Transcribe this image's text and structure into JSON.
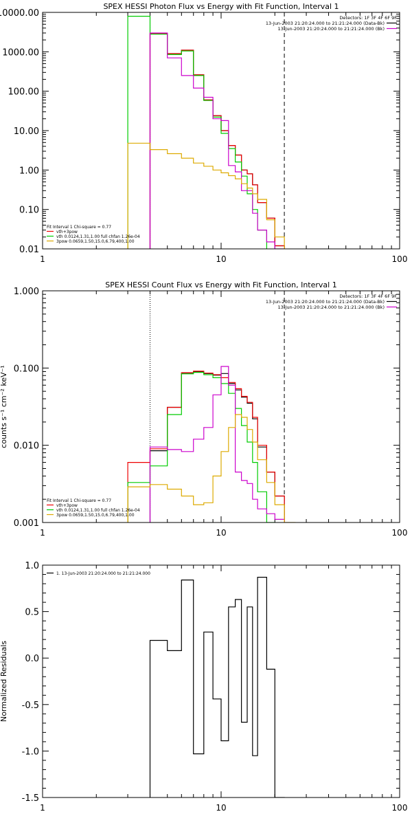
{
  "chart_data": [
    {
      "type": "line",
      "title": "SPEX HESSI Photon Flux vs Energy with Fit Function, Interval 1",
      "xscale": "log",
      "yscale": "log",
      "xlim": [
        1,
        100
      ],
      "ylim": [
        0.01,
        10000
      ],
      "x_ticks": [
        1,
        10,
        100
      ],
      "x_tick_labels": [
        "1",
        "10",
        "100"
      ],
      "y_ticks": [
        0.01,
        0.1,
        1,
        10,
        100,
        1000,
        10000
      ],
      "y_tick_labels": [
        "0.01",
        "0.10",
        "1.00",
        "10.00",
        "100.00",
        "1000.00",
        "10000.00"
      ],
      "ylabel": "",
      "dotted_x": 4.0,
      "dashed_x": 22.6,
      "header": [
        "Detectors: 1F 3F 4F 6F 9F",
        "13-Jun-2003 21:20:24.000 to 21:21:24.000 (Data-Bk)",
        "13-Jun-2003 21:20:24.000 to 21:21:24.000 (Bk)"
      ],
      "header_colors": [
        "#000000",
        "#000000",
        "#cc00cc"
      ],
      "legend": [
        "Fit Interval 1    Chi-square = 0.77",
        "vth+3pow",
        "vth 0.0124,1.31,1.00  full chfan 1.26e-04",
        "3pow 0.0659,1.50,15.0,6.79,400,1.00"
      ],
      "legend_colors": [
        "#000000",
        "#ee0000",
        "#00cc00",
        "#ddaa00"
      ],
      "edges": [
        3.0,
        4.0,
        5.0,
        6.0,
        7.0,
        8.0,
        9.0,
        10.0,
        11.0,
        12.0,
        13.0,
        14.0,
        15.0,
        16.0,
        18.0,
        20.0,
        22.6
      ],
      "series": [
        {
          "color": "#000000",
          "values": [
            null,
            2900,
            900,
            1100,
            260,
            60,
            24,
            10,
            4.2,
            2.4,
            1.0,
            0.8,
            0.42,
            0.15,
            0.06,
            0.012
          ]
        },
        {
          "color": "#ee0000",
          "values": [
            null,
            2900,
            900,
            1100,
            260,
            60,
            24,
            10,
            4.2,
            2.4,
            1.0,
            0.8,
            0.42,
            0.15,
            0.06,
            0.012
          ]
        },
        {
          "color": "#00cc00",
          "values": [
            8000,
            2800,
            850,
            1050,
            250,
            58,
            22,
            8.5,
            3.5,
            1.6,
            0.7,
            0.25,
            0.1,
            0.03,
            0.008,
            null
          ]
        },
        {
          "color": "#cc00cc",
          "values": [
            null,
            3000,
            700,
            250,
            120,
            70,
            20,
            18,
            1.3,
            0.9,
            0.3,
            0.3,
            0.08,
            0.03,
            0.015,
            0.01
          ]
        },
        {
          "color": "#ddaa00",
          "values": [
            4.8,
            3.3,
            2.6,
            2.0,
            1.5,
            1.25,
            1.0,
            0.85,
            0.72,
            0.6,
            0.45,
            0.35,
            0.25,
            0.18,
            0.055,
            0.02
          ]
        }
      ]
    },
    {
      "type": "line",
      "title": "SPEX HESSI Count Flux vs Energy with Fit Function, Interval 1",
      "xscale": "log",
      "yscale": "log",
      "xlim": [
        1,
        100
      ],
      "ylim": [
        0.001,
        1
      ],
      "x_ticks": [
        1,
        10,
        100
      ],
      "x_tick_labels": [
        "1",
        "10",
        "100"
      ],
      "y_ticks": [
        0.001,
        0.01,
        0.1,
        1
      ],
      "y_tick_labels": [
        "0.001",
        "0.010",
        "0.100",
        "1.000"
      ],
      "ylabel": "counts s⁻¹ cm⁻² keV⁻¹",
      "dotted_x": 4.0,
      "dashed_x": 22.6,
      "header": [
        "Detectors: 1F 3F 4F 6F 9F",
        "13-Jun-2003 21:20:24.000 to 21:21:24.000 (Data-Bk)",
        "13-Jun-2003 21:20:24.000 to 21:21:24.000 (Bk)"
      ],
      "header_colors": [
        "#000000",
        "#000000",
        "#cc00cc"
      ],
      "legend": [
        "Fit Interval 1    Chi-square = 0.77",
        "vth+3pow",
        "vth 0.0124,1.31,1.00  full chfan 1.26e-04",
        "3pow 0.0659,1.50,15.0,6.79,400,1.00"
      ],
      "legend_colors": [
        "#000000",
        "#ee0000",
        "#00cc00",
        "#ddaa00"
      ],
      "edges": [
        3.0,
        4.0,
        5.0,
        6.0,
        7.0,
        8.0,
        9.0,
        10.0,
        11.0,
        12.0,
        13.0,
        14.0,
        15.0,
        16.0,
        18.0,
        20.0,
        22.6,
        26.0
      ],
      "series": [
        {
          "color": "#000000",
          "values": [
            null,
            0.0085,
            0.031,
            0.086,
            0.09,
            0.085,
            0.081,
            0.085,
            0.063,
            0.052,
            0.042,
            0.035,
            0.022,
            0.0095,
            0.0045,
            0.0022,
            null
          ]
        },
        {
          "color": "#ee0000",
          "values": [
            0.006,
            0.009,
            0.031,
            0.087,
            0.091,
            0.086,
            0.082,
            0.075,
            0.065,
            0.054,
            0.043,
            0.036,
            0.023,
            0.01,
            0.0045,
            0.0022,
            null
          ]
        },
        {
          "color": "#00cc00",
          "values": [
            0.0033,
            0.0054,
            0.025,
            0.084,
            0.088,
            0.082,
            0.075,
            0.063,
            0.047,
            0.03,
            0.018,
            0.011,
            0.006,
            0.0025,
            0.001,
            null,
            null
          ]
        },
        {
          "color": "#cc00cc",
          "values": [
            null,
            0.0095,
            0.0088,
            0.0083,
            0.012,
            0.017,
            0.045,
            0.105,
            0.06,
            0.0045,
            0.0035,
            0.0032,
            0.002,
            0.0015,
            0.0013,
            0.0011,
            null
          ]
        },
        {
          "color": "#ddaa00",
          "values": [
            0.0029,
            0.0031,
            0.0027,
            0.0022,
            0.0017,
            0.0018,
            0.004,
            0.0083,
            0.017,
            0.025,
            0.023,
            0.016,
            0.011,
            0.0065,
            0.0033,
            0.0017,
            0.001
          ]
        }
      ]
    },
    {
      "type": "line",
      "title": "",
      "xscale": "log",
      "yscale": "linear",
      "xlim": [
        1,
        100
      ],
      "ylim": [
        -1.5,
        1.0
      ],
      "x_ticks": [
        1,
        10,
        100
      ],
      "x_tick_labels": [
        "1",
        "10",
        "100"
      ],
      "y_ticks": [
        -1.5,
        -1.0,
        -0.5,
        0.0,
        0.5,
        1.0
      ],
      "y_tick_labels": [
        "-1.5",
        "-1.0",
        "-0.5",
        "0.0",
        "0.5",
        "1.0"
      ],
      "ylabel": "Normalized Residuals",
      "legend": [
        "1. 13-Jun-2003 21:20:24.000 to 21:21:24.000"
      ],
      "legend_colors": [
        "#000000"
      ],
      "edges": [
        4.0,
        5.0,
        6.0,
        7.0,
        8.0,
        9.0,
        10.0,
        11.0,
        12.0,
        13.0,
        14.0,
        15.0,
        16.0,
        18.0,
        20.0,
        22.6
      ],
      "series": [
        {
          "color": "#000000",
          "values": [
            0.19,
            0.08,
            0.84,
            -1.03,
            0.28,
            -0.44,
            -0.89,
            0.55,
            0.63,
            -0.69,
            0.55,
            -1.05,
            0.87,
            -0.12,
            -1.5
          ]
        }
      ]
    }
  ]
}
